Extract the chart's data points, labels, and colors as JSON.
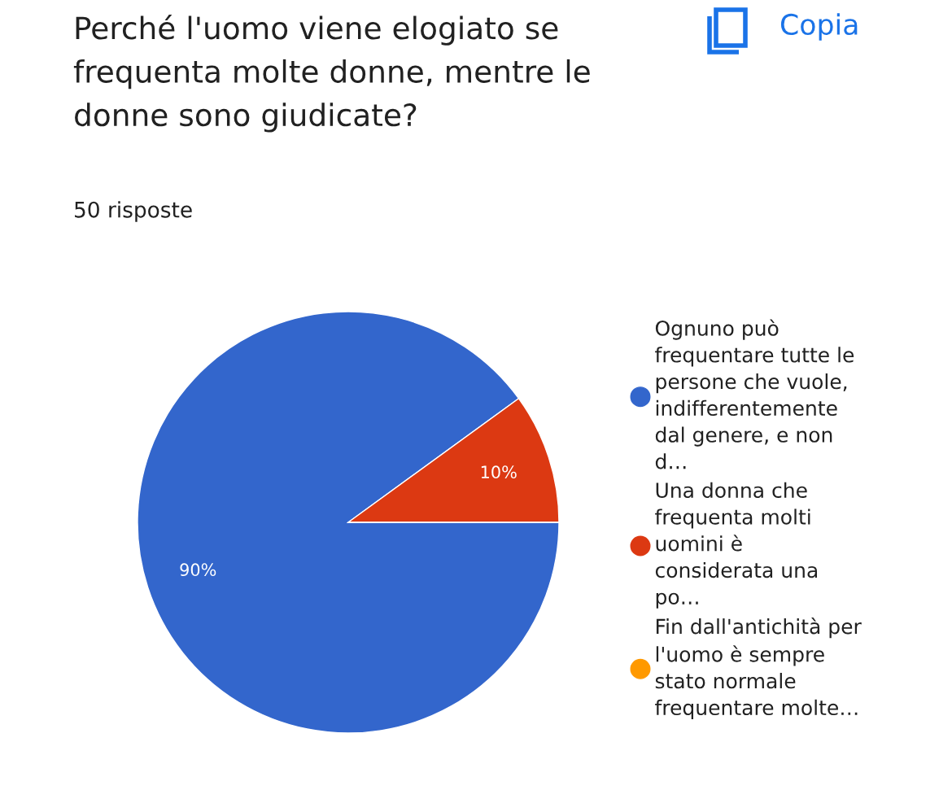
{
  "chart_data": {
    "type": "pie",
    "title": "Perché l'uomo viene elogiato se frequenta molte donne, mentre le donne sono giudicate?",
    "subtitle": "50 risposte",
    "annotations": [
      "Copia"
    ],
    "categories": [
      "Ognuno può frequentare tutte le persone che vuole, indifferentemente dal genere, e non d…",
      "Una donna che frequenta molti uomini è considerata una po…",
      "Fin dall'antichità per l'uomo è sempre stato normale frequentare molte…"
    ],
    "values": [
      90,
      10,
      0
    ],
    "colors": [
      "#3366cc",
      "#dc3912",
      "#ff9900"
    ],
    "value_labels": [
      "90%",
      "10%",
      null
    ],
    "legend": "right"
  }
}
